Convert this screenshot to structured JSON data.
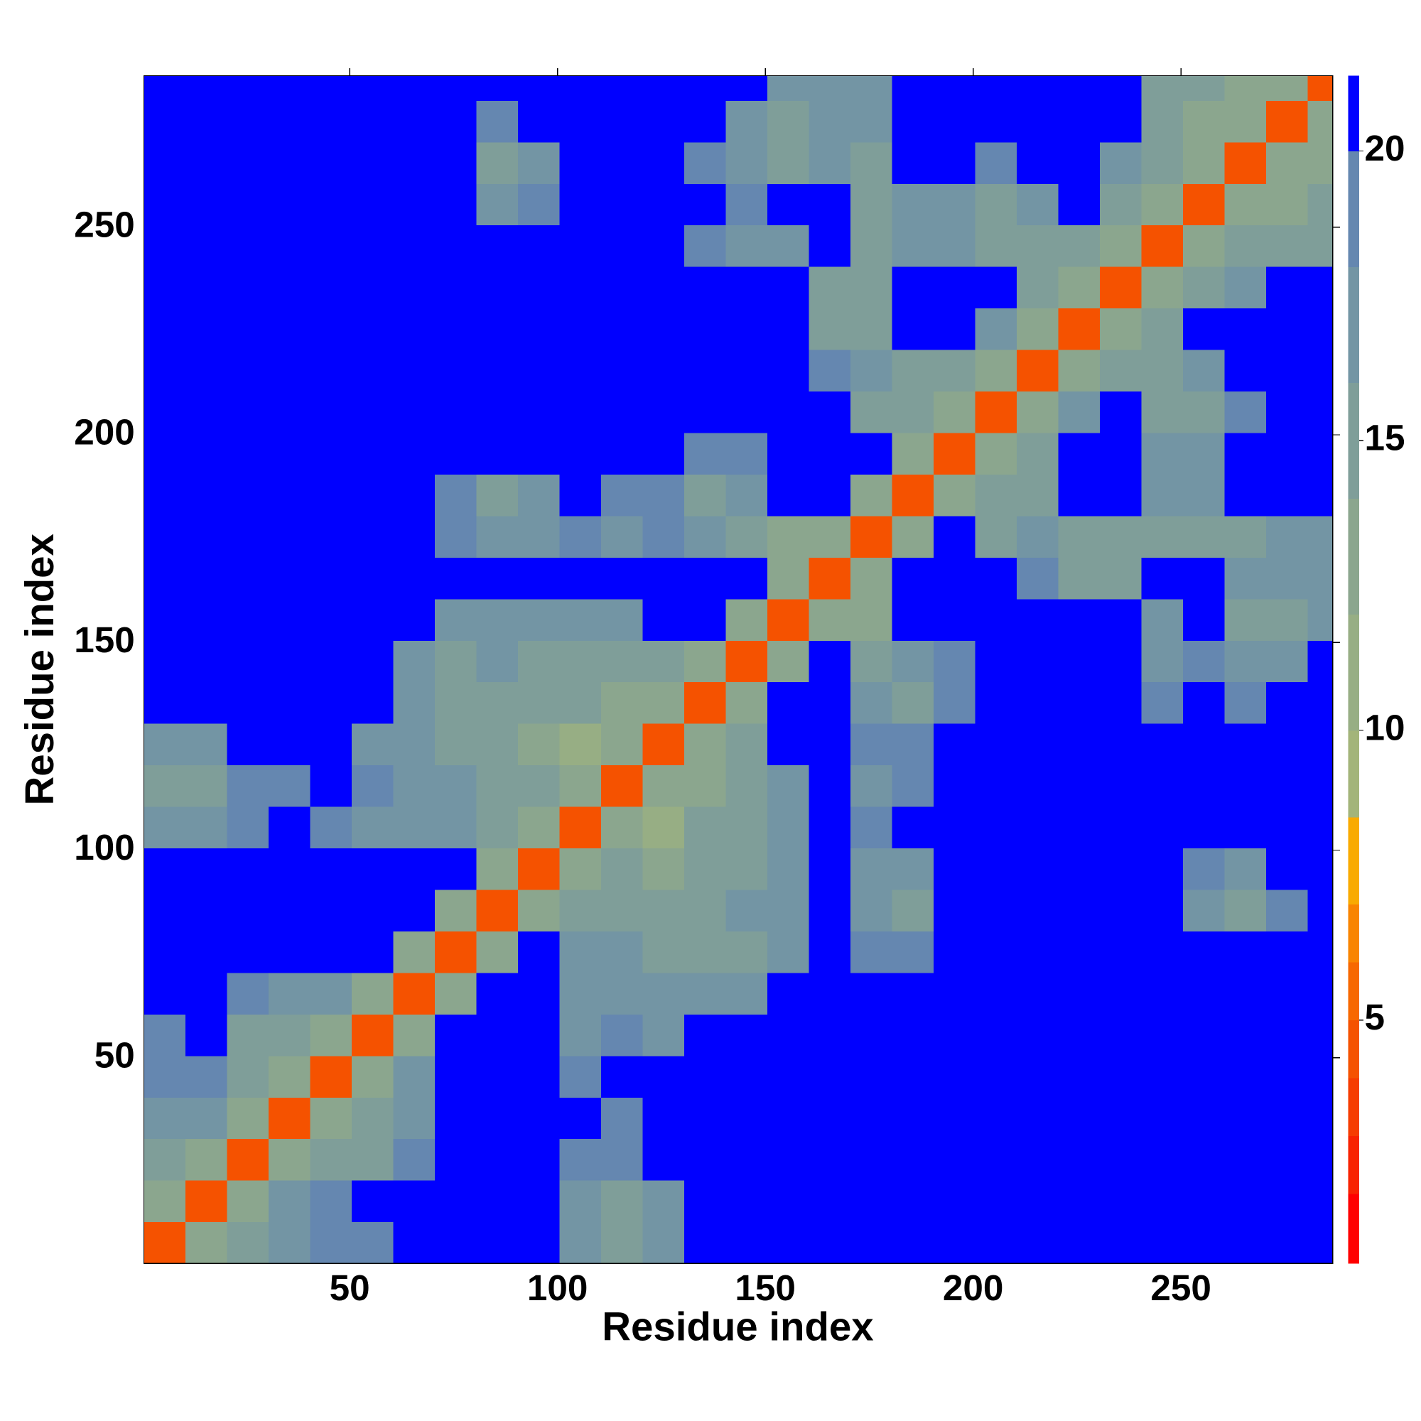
{
  "chart_data": {
    "type": "heatmap",
    "xlabel": "Residue index",
    "ylabel": "Residue index",
    "xlim": [
      0.5,
      286.5
    ],
    "ylim": [
      0.5,
      286.5
    ],
    "xticks": [
      50,
      100,
      150,
      200,
      250
    ],
    "yticks": [
      50,
      100,
      150,
      200,
      250
    ],
    "edges": [
      0.5,
      10.5,
      20.5,
      30.5,
      40.5,
      50.5,
      60.5,
      70.5,
      80.5,
      90.5,
      100.5,
      110.5,
      120.5,
      130.5,
      140.5,
      150.5,
      160.5,
      170.5,
      180.5,
      190.5,
      200.5,
      210.5,
      220.5,
      230.5,
      240.5,
      250.5,
      260.5,
      270.5,
      280.5,
      286.5
    ],
    "colorbar": {
      "levels": [
        0.8,
        2,
        3,
        4,
        5,
        6,
        7,
        8.5,
        10,
        12,
        14,
        16,
        18,
        20,
        21.3
      ],
      "colors": [
        "#ff0000",
        "#f82200",
        "#f63c00",
        "#f55200",
        "#f76800",
        "#f98400",
        "#f9aa00",
        "#a3b47a",
        "#97ae84",
        "#8ba68e",
        "#7f9e99",
        "#7395a4",
        "#6587b0",
        "#0000ff"
      ],
      "ticks": [
        5,
        10,
        15,
        20
      ]
    },
    "z": [
      [
        4,
        12,
        15,
        17,
        18,
        19,
        21,
        21,
        21,
        21,
        17,
        15,
        17,
        21,
        21,
        21,
        21,
        21,
        21,
        21,
        21,
        21,
        21,
        21,
        21,
        21,
        21,
        21,
        21
      ],
      [
        12,
        4,
        12,
        16,
        18,
        21,
        21,
        21,
        21,
        21,
        17,
        15,
        17,
        21,
        21,
        21,
        21,
        21,
        21,
        21,
        21,
        21,
        21,
        21,
        21,
        21,
        21,
        21,
        21
      ],
      [
        15,
        12,
        4,
        12,
        14,
        15,
        18,
        21,
        21,
        21,
        19,
        18,
        21,
        21,
        21,
        21,
        21,
        21,
        21,
        21,
        21,
        21,
        21,
        21,
        21,
        21,
        21,
        21,
        21
      ],
      [
        17,
        16,
        12,
        4,
        12,
        14,
        17,
        21,
        21,
        21,
        21,
        19,
        21,
        21,
        21,
        21,
        21,
        21,
        21,
        21,
        21,
        21,
        21,
        21,
        21,
        21,
        21,
        21,
        21
      ],
      [
        18,
        18,
        14,
        12,
        4,
        12,
        17,
        21,
        21,
        21,
        18,
        21,
        21,
        21,
        21,
        21,
        21,
        21,
        21,
        21,
        21,
        21,
        21,
        21,
        21,
        21,
        21,
        21,
        21
      ],
      [
        19,
        21,
        15,
        14,
        12,
        4,
        12,
        20,
        21,
        21,
        17,
        18,
        16,
        21,
        21,
        21,
        21,
        21,
        21,
        21,
        21,
        21,
        21,
        21,
        21,
        21,
        21,
        21,
        21
      ],
      [
        21,
        21,
        18,
        17,
        17,
        12,
        4,
        12,
        20,
        21,
        16,
        17,
        16,
        17,
        17,
        21,
        21,
        21,
        21,
        21,
        21,
        21,
        21,
        21,
        21,
        21,
        21,
        21,
        21
      ],
      [
        21,
        21,
        21,
        21,
        21,
        20,
        12,
        4,
        12,
        20,
        16,
        16,
        15,
        15,
        15,
        17,
        21,
        19,
        19,
        21,
        21,
        21,
        21,
        21,
        21,
        21,
        21,
        21,
        21
      ],
      [
        21,
        21,
        21,
        21,
        21,
        21,
        20,
        12,
        4,
        12,
        15,
        15,
        14,
        15,
        16,
        16,
        21,
        16,
        15,
        21,
        21,
        21,
        21,
        21,
        21,
        17,
        15,
        18,
        21
      ],
      [
        21,
        21,
        21,
        21,
        21,
        21,
        21,
        20,
        12,
        4,
        12,
        14,
        13,
        14,
        15,
        17,
        21,
        17,
        16,
        21,
        21,
        21,
        21,
        21,
        21,
        18,
        16,
        21,
        21
      ],
      [
        17,
        17,
        19,
        21,
        18,
        17,
        16,
        16,
        15,
        12,
        4,
        12,
        11,
        14,
        15,
        16,
        21,
        18,
        21,
        21,
        21,
        21,
        21,
        21,
        21,
        21,
        21,
        21,
        21
      ],
      [
        15,
        15,
        18,
        19,
        21,
        18,
        17,
        16,
        15,
        14,
        12,
        4,
        12,
        13,
        15,
        17,
        21,
        17,
        18,
        21,
        21,
        21,
        21,
        21,
        21,
        21,
        21,
        21,
        21
      ],
      [
        17,
        17,
        21,
        21,
        21,
        16,
        16,
        15,
        14,
        13,
        11,
        12,
        4,
        12,
        14,
        21,
        21,
        18,
        18,
        21,
        21,
        21,
        21,
        21,
        21,
        21,
        21,
        21,
        21
      ],
      [
        21,
        21,
        21,
        21,
        21,
        21,
        17,
        15,
        15,
        14,
        14,
        13,
        12,
        4,
        12,
        20,
        21,
        16,
        15,
        18,
        21,
        21,
        21,
        21,
        18,
        21,
        18,
        21,
        21
      ],
      [
        21,
        21,
        21,
        21,
        21,
        21,
        17,
        15,
        16,
        15,
        15,
        15,
        14,
        12,
        4,
        12,
        20,
        14,
        16,
        18,
        21,
        21,
        21,
        21,
        17,
        18,
        16,
        16,
        21
      ],
      [
        21,
        21,
        21,
        21,
        21,
        21,
        21,
        17,
        16,
        17,
        16,
        17,
        21,
        20,
        12,
        4,
        12,
        13,
        21,
        21,
        21,
        21,
        21,
        21,
        17,
        21,
        15,
        15,
        17
      ],
      [
        21,
        21,
        21,
        21,
        21,
        21,
        21,
        21,
        21,
        21,
        21,
        21,
        21,
        21,
        20,
        12,
        4,
        12,
        20,
        21,
        21,
        18,
        15,
        15,
        21,
        21,
        16,
        16,
        16
      ],
      [
        21,
        21,
        21,
        21,
        21,
        21,
        21,
        19,
        16,
        17,
        18,
        17,
        18,
        16,
        14,
        13,
        12,
        4,
        12,
        20,
        15,
        16,
        14,
        15,
        14,
        14,
        15,
        16,
        17
      ],
      [
        21,
        21,
        21,
        21,
        21,
        21,
        21,
        19,
        15,
        16,
        21,
        18,
        18,
        15,
        16,
        21,
        20,
        12,
        4,
        12,
        14,
        15,
        21,
        21,
        16,
        16,
        21,
        21,
        21
      ],
      [
        21,
        21,
        21,
        21,
        21,
        21,
        21,
        21,
        21,
        21,
        21,
        21,
        21,
        18,
        18,
        21,
        21,
        20,
        12,
        4,
        12,
        15,
        21,
        21,
        16,
        17,
        21,
        21,
        21
      ],
      [
        21,
        21,
        21,
        21,
        21,
        21,
        21,
        21,
        21,
        21,
        21,
        21,
        21,
        21,
        21,
        21,
        21,
        15,
        14,
        12,
        4,
        12,
        16,
        21,
        14,
        15,
        19,
        21,
        21
      ],
      [
        21,
        21,
        21,
        21,
        21,
        21,
        21,
        21,
        21,
        21,
        21,
        21,
        21,
        21,
        21,
        21,
        18,
        16,
        15,
        15,
        12,
        4,
        12,
        15,
        15,
        16,
        21,
        21,
        21
      ],
      [
        21,
        21,
        21,
        21,
        21,
        21,
        21,
        21,
        21,
        21,
        21,
        21,
        21,
        21,
        21,
        21,
        15,
        14,
        21,
        21,
        16,
        12,
        4,
        12,
        15,
        21,
        21,
        21,
        21
      ],
      [
        21,
        21,
        21,
        21,
        21,
        21,
        21,
        21,
        21,
        21,
        21,
        21,
        21,
        21,
        21,
        21,
        15,
        15,
        21,
        21,
        21,
        15,
        12,
        4,
        12,
        14,
        16,
        21,
        21
      ],
      [
        21,
        21,
        21,
        21,
        21,
        21,
        21,
        21,
        21,
        21,
        21,
        21,
        21,
        18,
        17,
        17,
        21,
        14,
        16,
        16,
        14,
        15,
        15,
        12,
        4,
        12,
        14,
        15,
        15
      ],
      [
        21,
        21,
        21,
        21,
        21,
        21,
        21,
        21,
        17,
        18,
        21,
        21,
        21,
        21,
        18,
        21,
        21,
        14,
        16,
        17,
        15,
        16,
        21,
        14,
        12,
        4,
        12,
        13,
        14
      ],
      [
        21,
        21,
        21,
        21,
        21,
        21,
        21,
        21,
        15,
        16,
        21,
        21,
        21,
        18,
        16,
        15,
        16,
        15,
        21,
        21,
        19,
        21,
        21,
        16,
        14,
        12,
        4,
        12,
        13
      ],
      [
        21,
        21,
        21,
        21,
        21,
        21,
        21,
        21,
        18,
        21,
        21,
        21,
        21,
        21,
        16,
        15,
        16,
        16,
        21,
        21,
        21,
        21,
        21,
        21,
        15,
        13,
        12,
        4,
        12
      ],
      [
        21,
        21,
        21,
        21,
        21,
        21,
        21,
        21,
        21,
        21,
        21,
        21,
        21,
        21,
        21,
        17,
        16,
        17,
        21,
        21,
        21,
        21,
        21,
        21,
        15,
        14,
        13,
        12,
        4
      ]
    ]
  }
}
